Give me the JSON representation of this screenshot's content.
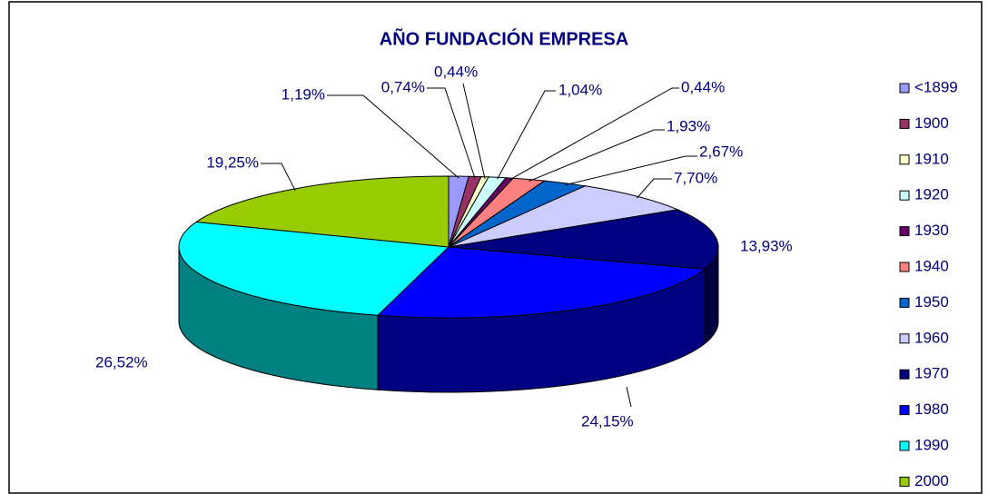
{
  "chart_data": {
    "type": "pie",
    "title": "AÑO FUNDACIÓN EMPRESA",
    "categories": [
      "<1899",
      "1900",
      "1910",
      "1920",
      "1930",
      "1940",
      "1950",
      "1960",
      "1970",
      "1980",
      "1990",
      "2000"
    ],
    "values": [
      1.19,
      0.74,
      0.44,
      1.04,
      0.44,
      1.93,
      2.67,
      7.7,
      13.93,
      24.15,
      26.52,
      19.25
    ],
    "value_labels": [
      "1,19%",
      "0,74%",
      "0,44%",
      "1,04%",
      "0,44%",
      "1,93%",
      "2,67%",
      "7,70%",
      "13,93%",
      "24,15%",
      "26,52%",
      "19,25%"
    ],
    "colors": [
      "#9999ff",
      "#993366",
      "#ffffcc",
      "#ccffff",
      "#660066",
      "#ff8080",
      "#0066cc",
      "#ccccff",
      "#000080",
      "#0000ff",
      "#00ffff",
      "#99cc00"
    ],
    "legend": "right"
  }
}
